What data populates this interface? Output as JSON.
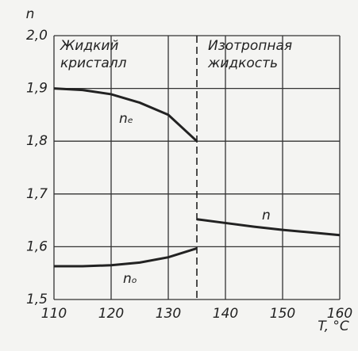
{
  "chart_data": {
    "type": "line",
    "y_label": "n",
    "x_label": "T, °C",
    "annotations": [
      "Жидкий",
      "кристалл",
      "Изотропная",
      "жидкость"
    ],
    "transition_x": 135,
    "x": [
      110,
      115,
      120,
      125,
      130,
      135,
      140,
      145,
      150,
      155,
      160
    ],
    "series": [
      {
        "name": "nₑ",
        "color": "#222",
        "values": [
          1.9,
          1.897,
          1.889,
          1.873,
          1.85,
          1.8,
          null,
          null,
          null,
          null,
          null
        ]
      },
      {
        "name": "nₒ",
        "color": "#222",
        "values": [
          1.563,
          1.563,
          1.565,
          1.57,
          1.58,
          1.597,
          null,
          null,
          null,
          null,
          null
        ]
      },
      {
        "name": "n",
        "color": "#222",
        "values": [
          null,
          null,
          null,
          null,
          null,
          1.652,
          1.645,
          1.638,
          1.632,
          1.627,
          1.622
        ]
      }
    ],
    "xlim": [
      110,
      160
    ],
    "xticks": [
      110,
      120,
      130,
      140,
      150,
      160
    ],
    "ylim": [
      1.5,
      2.0
    ],
    "yticks": [
      {
        "value": 1.5,
        "label": "1,5"
      },
      {
        "value": 1.6,
        "label": "1,6"
      },
      {
        "value": 1.7,
        "label": "1,7"
      },
      {
        "value": 1.8,
        "label": "1,8"
      },
      {
        "value": 1.9,
        "label": "1,9"
      },
      {
        "value": 2.0,
        "label": "2,0"
      }
    ],
    "grid": true
  }
}
